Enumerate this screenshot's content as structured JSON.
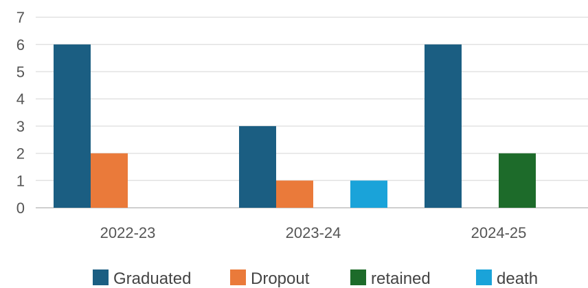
{
  "chart_data": {
    "type": "bar",
    "categories": [
      "2022-23",
      "2023-24",
      "2024-25"
    ],
    "series": [
      {
        "name": "Graduated",
        "color": "#1b5e82",
        "values": [
          6,
          3,
          6
        ]
      },
      {
        "name": "Dropout",
        "color": "#ea7a3a",
        "values": [
          2,
          1,
          0
        ]
      },
      {
        "name": "retained",
        "color": "#1d6b2a",
        "values": [
          0,
          0,
          2
        ]
      },
      {
        "name": "death",
        "color": "#1aa3d9",
        "values": [
          0,
          1,
          0
        ]
      }
    ],
    "ylim": [
      0,
      7
    ],
    "yticks": [
      "0",
      "1",
      "2",
      "3",
      "4",
      "5",
      "6",
      "7"
    ],
    "grid": true,
    "legend_position": "bottom"
  }
}
